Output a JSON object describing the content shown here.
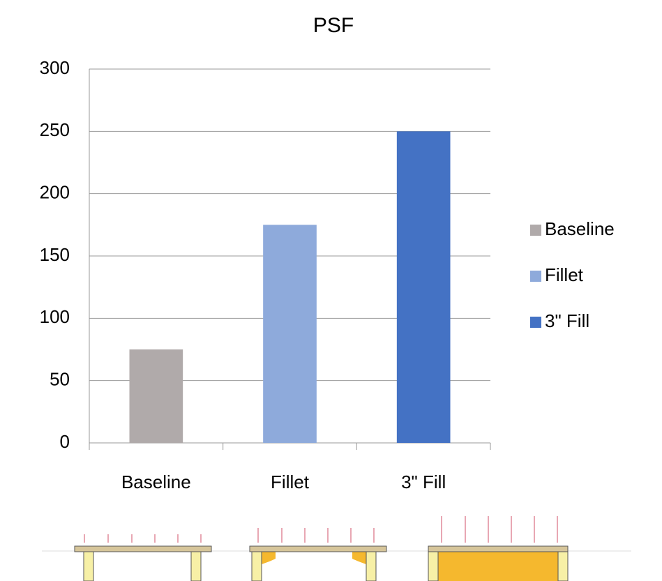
{
  "chart_data": {
    "type": "bar",
    "title": "PSF",
    "categories": [
      "Baseline",
      "Fillet",
      "3\" Fill"
    ],
    "values": [
      75,
      175,
      250
    ],
    "colors": [
      "#b0aaaa",
      "#8eaadb",
      "#4472c4"
    ],
    "ylim": [
      0,
      300
    ],
    "yticks": [
      0,
      50,
      100,
      150,
      200,
      250,
      300
    ],
    "grid": true,
    "legend": "right"
  }
}
